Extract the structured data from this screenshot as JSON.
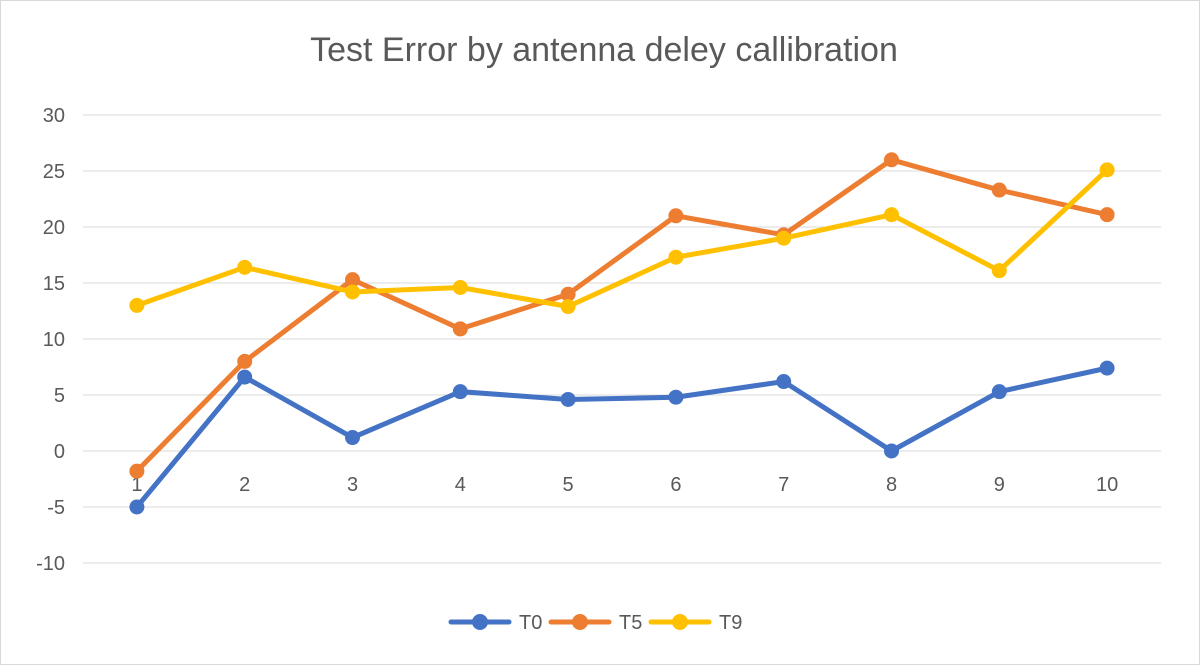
{
  "chart_data": {
    "type": "line",
    "title": "Test Error by antenna deley callibration",
    "xlabel": "",
    "ylabel": "",
    "categories": [
      "1",
      "2",
      "3",
      "4",
      "5",
      "6",
      "7",
      "8",
      "9",
      "10"
    ],
    "ylim": [
      -10,
      30
    ],
    "yticks": [
      "30",
      "25",
      "20",
      "15",
      "10",
      "5",
      "0",
      "-5",
      "-10"
    ],
    "ytick_values": [
      30,
      25,
      20,
      15,
      10,
      5,
      0,
      -5,
      -10
    ],
    "grid": true,
    "legend_position": "bottom",
    "series": [
      {
        "name": "T0",
        "color": "#4472c4",
        "values": [
          -5,
          6.6,
          1.2,
          5.3,
          4.6,
          4.8,
          6.2,
          0,
          5.3,
          7.4
        ]
      },
      {
        "name": "T5",
        "color": "#ed7d31",
        "values": [
          -1.8,
          8,
          15.3,
          10.9,
          14,
          21,
          19.3,
          26,
          23.3,
          21.1
        ]
      },
      {
        "name": "T9",
        "color": "#ffc000",
        "values": [
          13,
          16.4,
          14.2,
          14.6,
          12.9,
          17.3,
          19,
          21.1,
          16.1,
          25.1
        ]
      }
    ]
  }
}
